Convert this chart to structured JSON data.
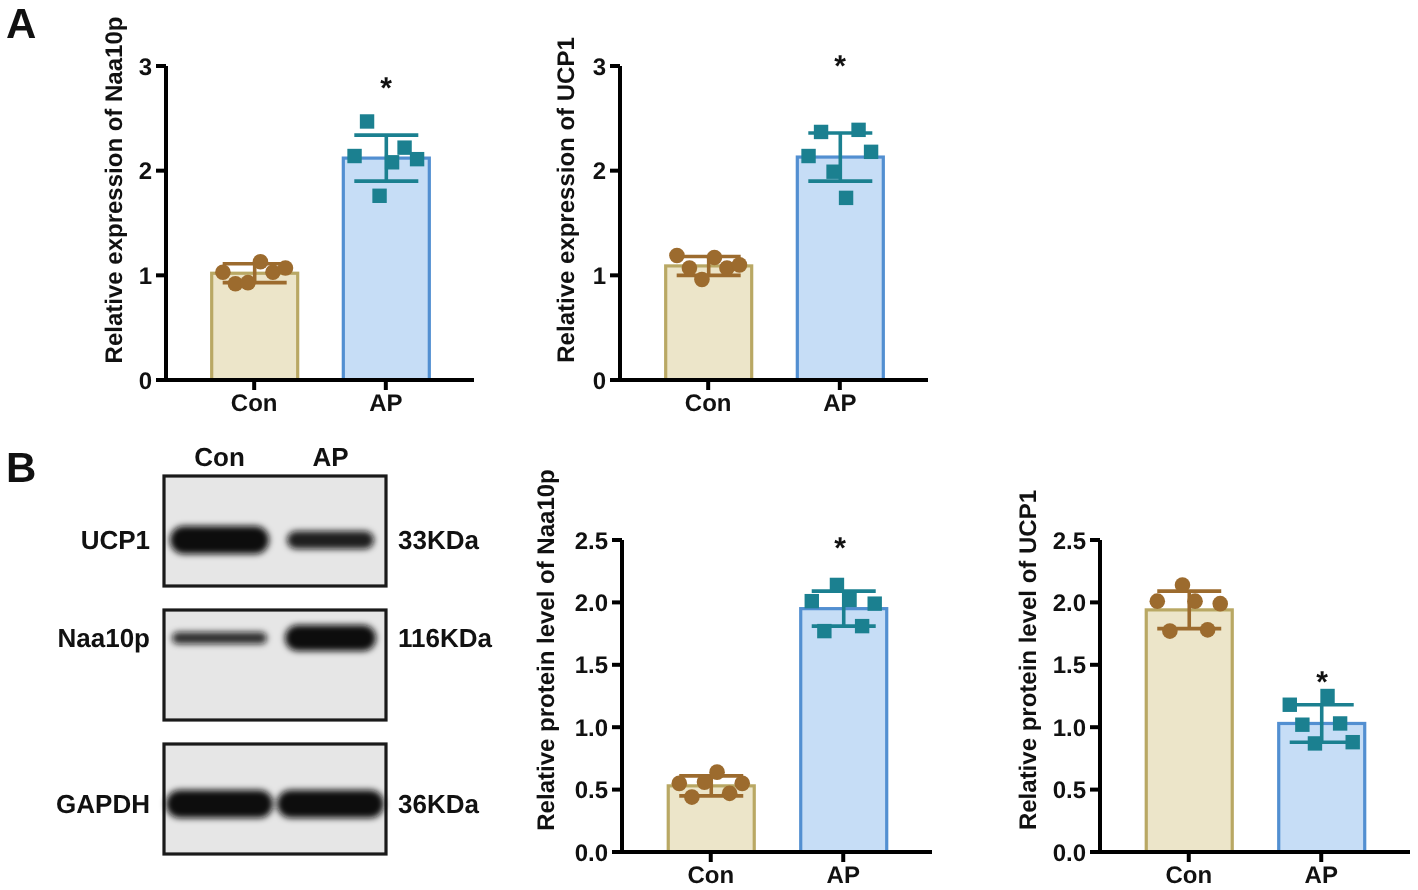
{
  "chart_data": [
    {
      "type": "bar",
      "ylabel": "Relative expression of Naa10p",
      "categories": [
        "Con",
        "AP"
      ],
      "ylim": [
        0,
        3
      ],
      "yticks": [
        0,
        1,
        2,
        3
      ],
      "annotations": [
        "A",
        "*"
      ],
      "series": [
        {
          "type": "bar",
          "colors": [
            "#ece5c9",
            "#c6ddf6"
          ],
          "values": [
            1.02,
            2.12
          ],
          "errors": [
            0.09,
            0.22
          ]
        },
        {
          "type": "scatter",
          "color": "#9c6b2e",
          "marker": "circle",
          "x": [
            "Con",
            "Con",
            "Con",
            "Con",
            "Con",
            "Con"
          ],
          "values": [
            1.03,
            0.92,
            0.93,
            1.13,
            1.03,
            1.07
          ]
        },
        {
          "type": "scatter",
          "color": "#1b8090",
          "marker": "square",
          "x": [
            "AP",
            "AP",
            "AP",
            "AP",
            "AP",
            "AP"
          ],
          "values": [
            2.14,
            2.47,
            1.76,
            2.08,
            2.22,
            2.11
          ]
        }
      ]
    },
    {
      "type": "bar",
      "ylabel": "Relative expression of UCP1",
      "categories": [
        "Con",
        "AP"
      ],
      "ylim": [
        0,
        3
      ],
      "yticks": [
        0,
        1,
        2,
        3
      ],
      "annotations": [
        "*"
      ],
      "series": [
        {
          "type": "bar",
          "colors": [
            "#ece5c9",
            "#c6ddf6"
          ],
          "values": [
            1.09,
            2.13
          ],
          "errors": [
            0.09,
            0.23
          ]
        },
        {
          "type": "scatter",
          "color": "#9c6b2e",
          "marker": "circle",
          "x": [
            "Con",
            "Con",
            "Con",
            "Con",
            "Con",
            "Con"
          ],
          "values": [
            1.19,
            1.07,
            0.96,
            1.17,
            1.07,
            1.1
          ]
        },
        {
          "type": "scatter",
          "color": "#1b8090",
          "marker": "square",
          "x": [
            "AP",
            "AP",
            "AP",
            "AP",
            "AP",
            "AP"
          ],
          "values": [
            2.14,
            2.37,
            1.99,
            1.74,
            2.39,
            2.18
          ]
        }
      ]
    },
    {
      "type": "other",
      "categories": [
        "Con",
        "AP"
      ],
      "y_categories": [
        "UCP1",
        "Naa10p",
        "GAPDH"
      ],
      "y2_categories": [
        "33KDa",
        "116KDa",
        "36KDa"
      ],
      "annotations": [
        "B"
      ]
    },
    {
      "type": "bar",
      "ylabel": "Relative protein level of Naa10p",
      "categories": [
        "Con",
        "AP"
      ],
      "ylim": [
        0,
        2.5
      ],
      "yticks": [
        {
          "value": 0,
          "label": "0.0"
        },
        0.5,
        {
          "value": 1,
          "label": "1.0"
        },
        1.5,
        {
          "value": 2,
          "label": "2.0"
        },
        2.5
      ],
      "annotations": [
        "*"
      ],
      "series": [
        {
          "type": "bar",
          "colors": [
            "#ece5c9",
            "#c6ddf6"
          ],
          "values": [
            0.53,
            1.95
          ],
          "errors": [
            0.08,
            0.14
          ]
        },
        {
          "type": "scatter",
          "color": "#9c6b2e",
          "marker": "circle",
          "x": [
            "Con",
            "Con",
            "Con",
            "Con",
            "Con",
            "Con"
          ],
          "values": [
            0.55,
            0.44,
            0.56,
            0.64,
            0.47,
            0.55
          ]
        },
        {
          "type": "scatter",
          "color": "#1b8090",
          "marker": "square",
          "x": [
            "AP",
            "AP",
            "AP",
            "AP",
            "AP",
            "AP"
          ],
          "values": [
            2.01,
            1.77,
            2.14,
            2.02,
            1.81,
            1.99
          ]
        }
      ]
    },
    {
      "type": "bar",
      "ylabel": "Relative protein level of UCP1",
      "categories": [
        "Con",
        "AP"
      ],
      "ylim": [
        0,
        2.5
      ],
      "yticks": [
        {
          "value": 0,
          "label": "0.0"
        },
        0.5,
        {
          "value": 1,
          "label": "1.0"
        },
        1.5,
        {
          "value": 2,
          "label": "2.0"
        },
        2.5
      ],
      "annotations": [
        "*"
      ],
      "series": [
        {
          "type": "bar",
          "colors": [
            "#ece5c9",
            "#c6ddf6"
          ],
          "values": [
            1.94,
            1.03
          ],
          "errors": [
            0.15,
            0.15
          ]
        },
        {
          "type": "scatter",
          "color": "#9c6b2e",
          "marker": "circle",
          "x": [
            "Con",
            "Con",
            "Con",
            "Con",
            "Con",
            "Con"
          ],
          "values": [
            2.01,
            1.77,
            2.14,
            2.01,
            1.78,
            1.99
          ]
        },
        {
          "type": "scatter",
          "color": "#1b8090",
          "marker": "square",
          "x": [
            "AP",
            "AP",
            "AP",
            "AP",
            "AP",
            "AP"
          ],
          "values": [
            1.18,
            1.02,
            0.87,
            1.25,
            1.03,
            0.88
          ]
        }
      ]
    }
  ]
}
